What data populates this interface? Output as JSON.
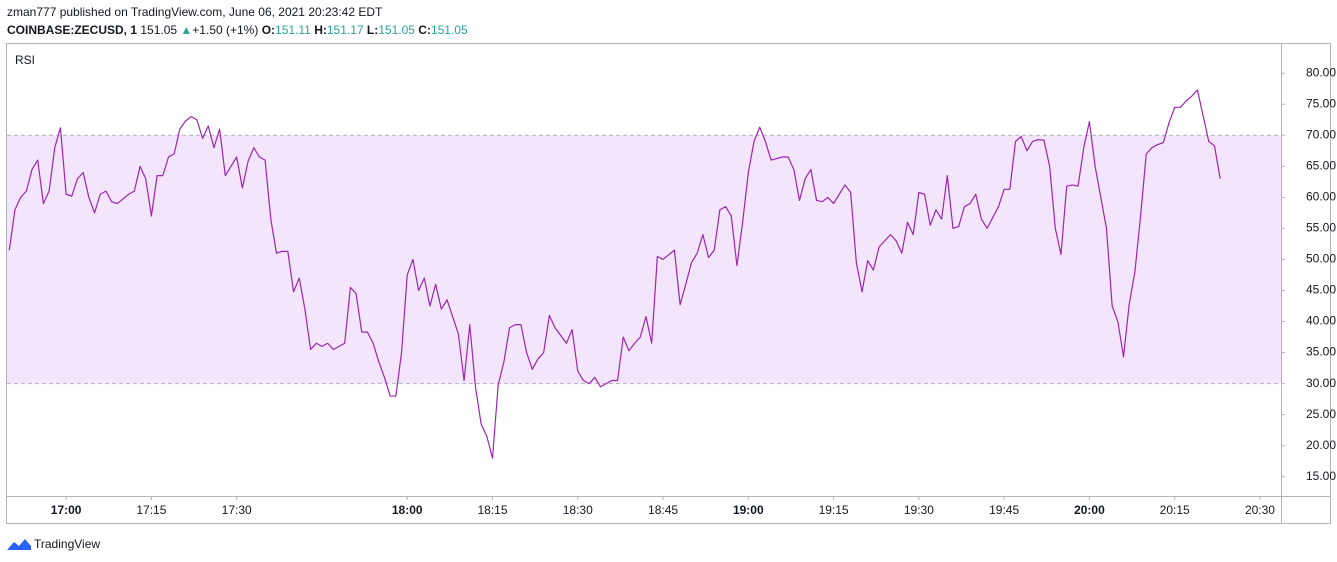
{
  "header": {
    "publisher": "zman777 published on TradingView.com, June 06, 2021 20:23:42 EDT",
    "symbol": "COINBASE:ZECUSD, 1",
    "last": "151.05",
    "change": "+1.50 (+1%)",
    "open_label": "O:",
    "open": "151.11",
    "high_label": "H:",
    "high": "151.17",
    "low_label": "L:",
    "low": "151.05",
    "close_label": "C:",
    "close": "151.05"
  },
  "footer": {
    "logo": "TradingView"
  },
  "chart_data": {
    "type": "line",
    "indicator": "RSI",
    "color": "#9c27b0",
    "band_color": "#f3e5fb",
    "bands": [
      30,
      70
    ],
    "xlim": [
      1009.6,
      1233.7
    ],
    "ylim": [
      11.9,
      84.7
    ],
    "xticks": [
      {
        "value": 1020,
        "label": "17:00"
      },
      {
        "value": 1035,
        "label": "17:15"
      },
      {
        "value": 1050,
        "label": "17:30"
      },
      {
        "value": 1080,
        "label": "18:00"
      },
      {
        "value": 1095,
        "label": "18:15"
      },
      {
        "value": 1110,
        "label": "18:30"
      },
      {
        "value": 1125,
        "label": "18:45"
      },
      {
        "value": 1140,
        "label": "19:00"
      },
      {
        "value": 1155,
        "label": "19:15"
      },
      {
        "value": 1170,
        "label": "19:30"
      },
      {
        "value": 1185,
        "label": "19:45"
      },
      {
        "value": 1200,
        "label": "20:00"
      },
      {
        "value": 1215,
        "label": "20:15"
      },
      {
        "value": 1230,
        "label": "20:30"
      }
    ],
    "yticks": [
      {
        "value": 15,
        "label": "15.00"
      },
      {
        "value": 20,
        "label": "20.00"
      },
      {
        "value": 25,
        "label": "25.00"
      },
      {
        "value": 30,
        "label": "30.00"
      },
      {
        "value": 35,
        "label": "35.00"
      },
      {
        "value": 40,
        "label": "40.00"
      },
      {
        "value": 45,
        "label": "45.00"
      },
      {
        "value": 50,
        "label": "50.00"
      },
      {
        "value": 55,
        "label": "55.00"
      },
      {
        "value": 60,
        "label": "60.00"
      },
      {
        "value": 65,
        "label": "65.00"
      },
      {
        "value": 70,
        "label": "70.00"
      },
      {
        "value": 75,
        "label": "75.00"
      },
      {
        "value": 80,
        "label": "80.00"
      }
    ],
    "x": [
      1010,
      1011,
      1012,
      1013,
      1014,
      1015,
      1016,
      1017,
      1018,
      1019,
      1020,
      1021,
      1022,
      1023,
      1024,
      1025,
      1026,
      1027,
      1028,
      1029,
      1031,
      1032,
      1033,
      1034,
      1035,
      1036,
      1037,
      1038,
      1039,
      1040,
      1041,
      1042,
      1043,
      1044,
      1045,
      1046,
      1047,
      1048,
      1050,
      1051,
      1052,
      1053,
      1054,
      1055,
      1056,
      1057,
      1058,
      1059,
      1060,
      1061,
      1062,
      1063,
      1064,
      1065,
      1066,
      1067,
      1069,
      1070,
      1071,
      1072,
      1073,
      1074,
      1075,
      1076,
      1077,
      1078,
      1079,
      1080,
      1081,
      1082,
      1083,
      1084,
      1085,
      1086,
      1087,
      1089,
      1090,
      1091,
      1092,
      1093,
      1094,
      1095,
      1096,
      1097,
      1098,
      1099,
      1100,
      1101,
      1102,
      1103,
      1104,
      1105,
      1106,
      1108,
      1109,
      1110,
      1111,
      1112,
      1113,
      1114,
      1115,
      1116,
      1117,
      1118,
      1119,
      1120,
      1121,
      1122,
      1123,
      1124,
      1125,
      1127,
      1128,
      1129,
      1130,
      1131,
      1132,
      1133,
      1134,
      1135,
      1136,
      1137,
      1138,
      1139,
      1140,
      1141,
      1142,
      1143,
      1144,
      1146,
      1147,
      1148,
      1149,
      1150,
      1151,
      1152,
      1153,
      1154,
      1155,
      1156,
      1157,
      1158,
      1159,
      1160,
      1161,
      1162,
      1163,
      1165,
      1166,
      1167,
      1168,
      1169,
      1170,
      1171,
      1172,
      1173,
      1174,
      1175,
      1176,
      1177,
      1178,
      1179,
      1180,
      1181,
      1182,
      1184,
      1185,
      1186,
      1187,
      1188,
      1189,
      1190,
      1191,
      1192,
      1193,
      1194,
      1195,
      1196,
      1197,
      1198,
      1199,
      1200,
      1201,
      1203,
      1204,
      1205,
      1206,
      1207,
      1208,
      1209,
      1210,
      1211,
      1212,
      1213,
      1214,
      1215,
      1216,
      1217,
      1218,
      1219,
      1221,
      1222,
      1223
    ],
    "values": [
      51.5,
      58,
      60,
      61,
      64.5,
      66,
      59,
      61,
      68,
      71.2,
      60.5,
      60.2,
      63,
      64,
      60,
      57.5,
      60.5,
      61,
      59.3,
      59,
      60.5,
      61,
      65,
      63,
      57,
      63.5,
      63.5,
      66.5,
      67,
      71,
      72.3,
      73,
      72.5,
      69.5,
      71.5,
      68,
      71,
      63.5,
      66.5,
      61.5,
      65.8,
      68,
      66.5,
      66,
      56.5,
      51,
      51.3,
      51.3,
      44.8,
      47,
      42,
      35.5,
      36.5,
      36,
      36.5,
      35.5,
      36.5,
      45.5,
      44.5,
      38.3,
      38.3,
      36.5,
      33.5,
      31,
      28,
      28,
      35,
      47.5,
      50,
      45,
      47,
      42.5,
      46,
      42,
      43.5,
      38,
      30.5,
      39.5,
      29.5,
      23.5,
      21.5,
      18,
      29.8,
      33.5,
      39,
      39.5,
      39.5,
      35,
      32.3,
      34,
      35,
      41,
      39,
      36.5,
      38.7,
      32,
      30.5,
      30,
      31,
      29.5,
      30,
      30.5,
      30.5,
      37.5,
      35.3,
      36.5,
      37.5,
      40.8,
      36.5,
      50.5,
      50,
      51.5,
      42.7,
      46,
      49.5,
      51,
      54,
      50.3,
      51.5,
      58,
      58.5,
      57,
      49,
      56,
      64,
      69,
      71.3,
      69,
      66,
      66.5,
      66.5,
      64.5,
      59.5,
      63,
      64.5,
      59.5,
      59.3,
      60,
      59,
      60.5,
      62,
      60.8,
      49.5,
      44.8,
      49.8,
      48.3,
      52,
      54,
      53,
      51,
      56,
      54,
      60.8,
      60.5,
      55.5,
      58,
      56.5,
      63.5,
      55,
      55.3,
      58.5,
      59,
      60.5,
      56.5,
      55,
      58.5,
      61.3,
      61.3,
      69,
      69.8,
      67.5,
      69,
      69.3,
      69.2,
      65,
      55,
      50.8,
      61.8,
      62,
      61.8,
      68,
      72.2,
      65,
      55,
      42.5,
      40,
      34.3,
      42.8,
      48,
      57,
      67,
      68,
      68.5,
      68.8,
      72,
      74.5,
      74.5,
      75.5,
      76.3,
      77.3,
      69,
      68.3,
      63
    ]
  }
}
